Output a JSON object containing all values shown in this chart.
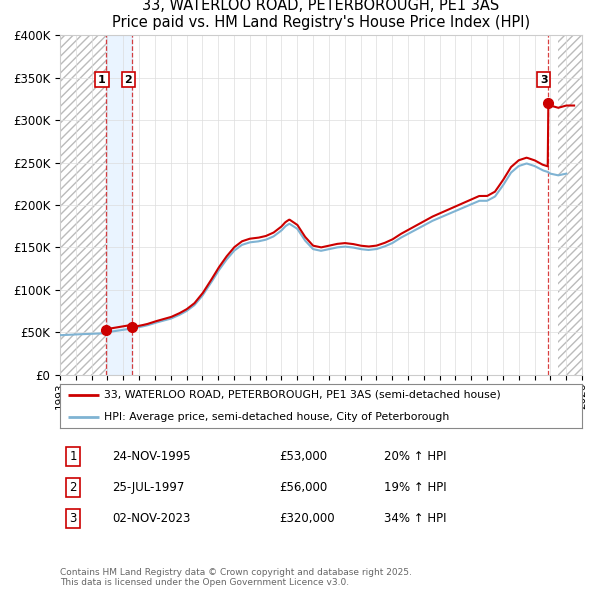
{
  "title": "33, WATERLOO ROAD, PETERBOROUGH, PE1 3AS",
  "subtitle": "Price paid vs. HM Land Registry's House Price Index (HPI)",
  "ylabel_ticks": [
    "£0",
    "£50K",
    "£100K",
    "£150K",
    "£200K",
    "£250K",
    "£300K",
    "£350K",
    "£400K"
  ],
  "ylim": [
    0,
    400000
  ],
  "xlim_start": 1993.0,
  "xlim_end": 2026.0,
  "red_line_color": "#cc0000",
  "blue_line_color": "#7fb3d3",
  "hatch_color": "#c8c8c8",
  "grid_color": "#cccccc",
  "background_color": "#ffffff",
  "sale_markers": [
    {
      "date_num": 1995.9,
      "price": 53000,
      "label": "1"
    },
    {
      "date_num": 1997.57,
      "price": 56000,
      "label": "2"
    },
    {
      "date_num": 2023.84,
      "price": 320000,
      "label": "3"
    }
  ],
  "legend_entries": [
    "33, WATERLOO ROAD, PETERBOROUGH, PE1 3AS (semi-detached house)",
    "HPI: Average price, semi-detached house, City of Peterborough"
  ],
  "table_rows": [
    {
      "num": "1",
      "date": "24-NOV-1995",
      "price": "£53,000",
      "hpi": "20% ↑ HPI"
    },
    {
      "num": "2",
      "date": "25-JUL-1997",
      "price": "£56,000",
      "hpi": "19% ↑ HPI"
    },
    {
      "num": "3",
      "date": "02-NOV-2023",
      "price": "£320,000",
      "hpi": "34% ↑ HPI"
    }
  ],
  "footer": "Contains HM Land Registry data © Crown copyright and database right 2025.\nThis data is licensed under the Open Government Licence v3.0."
}
